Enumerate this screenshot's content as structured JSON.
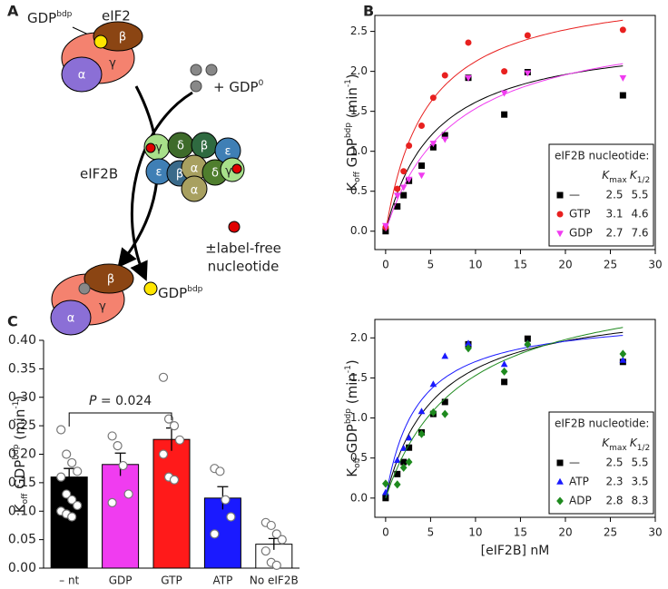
{
  "panel_labels": [
    "A",
    "B",
    "C"
  ],
  "diagram": {
    "complex_top": "eIF2",
    "ligand": "GDP",
    "ligand_sup": "bdp",
    "subunits_top": [
      "β",
      "γ",
      "α"
    ],
    "free_ligand": "+ GDP",
    "free_ligand_sup": "0",
    "gef": "eIF2B",
    "gef_subunits": [
      "γ",
      "δ",
      "β",
      "ε",
      "ε",
      "β",
      "α",
      "δ",
      "γ",
      "α"
    ],
    "label_free": [
      "±label-free",
      "nucleotide"
    ],
    "subunits_bottom": [
      "β",
      "γ",
      "α"
    ],
    "released": "GDP",
    "released_sup": "bdp"
  },
  "chart_data": [
    {
      "type": "scatter",
      "x": [
        0,
        1.3,
        2,
        2.6,
        4,
        5.3,
        6.6,
        9.2,
        13.2,
        15.8,
        26.4
      ],
      "xlim": [
        -1.2,
        30
      ],
      "xticks": [
        0,
        5,
        10,
        15,
        20,
        25,
        30
      ],
      "ylim": [
        -0.23,
        2.7
      ],
      "yticks": [
        {
          "value": 0,
          "label": "0.0"
        },
        0.5,
        {
          "value": 1,
          "label": "1.0"
        },
        1.5,
        {
          "value": 2,
          "label": "2.0"
        },
        2.5
      ],
      "ylabel": [
        {
          "text": "K"
        },
        {
          "text": "off",
          "script": "sub"
        },
        {
          "text": " GDP"
        },
        {
          "text": "bdp",
          "script": "super"
        },
        {
          "text": " (min"
        },
        {
          "text": "-1",
          "script": "super"
        },
        {
          "text": ")"
        }
      ],
      "legend": {
        "title": "eIF2B nucleotide:",
        "columns": [
          {
            "text": "K",
            "sub": "max"
          },
          {
            "text": "K",
            "sub": "1/2"
          }
        ],
        "position": "lower right"
      },
      "series": [
        {
          "name": "—",
          "color": "#000000",
          "marker": "square",
          "values": [
            0,
            0.31,
            0.45,
            0.63,
            0.82,
            1.05,
            1.2,
            1.92,
            1.46,
            1.99,
            1.7
          ],
          "fit": {
            "kmax": 2.5,
            "k_half": 5.5
          }
        },
        {
          "name": "GTP",
          "color": "#e8201f",
          "marker": "circle",
          "values": [
            0.05,
            0.53,
            0.75,
            1.07,
            1.32,
            1.67,
            1.95,
            2.36,
            2.0,
            2.45,
            2.52
          ],
          "fit": {
            "kmax": 3.1,
            "k_half": 4.6
          }
        },
        {
          "name": "GDP",
          "color": "#f03cf0",
          "marker": "triangle-down",
          "values": [
            0.07,
            0.45,
            0.55,
            0.65,
            0.7,
            1.1,
            1.15,
            1.92,
            1.73,
            1.98,
            1.92
          ],
          "fit": {
            "kmax": 2.7,
            "k_half": 7.6
          }
        }
      ]
    },
    {
      "type": "scatter",
      "x": [
        0,
        1.3,
        2,
        2.6,
        4,
        5.3,
        6.6,
        9.2,
        13.2,
        15.8,
        26.4
      ],
      "xlim": [
        -1.2,
        30
      ],
      "xticks": [
        0,
        5,
        10,
        15,
        20,
        25,
        30
      ],
      "xlabel": "[eIF2B] nM",
      "ylim": [
        -0.24,
        2.23
      ],
      "yticks": [
        {
          "value": 0,
          "label": "0.0"
        },
        0.5,
        {
          "value": 1,
          "label": "1.0"
        },
        1.5,
        {
          "value": 2,
          "label": "2.0"
        }
      ],
      "ylabel": [
        {
          "text": "K"
        },
        {
          "text": "off",
          "script": "sub"
        },
        {
          "text": " GDP"
        },
        {
          "text": "bdp",
          "script": "super"
        },
        {
          "text": " (min"
        },
        {
          "text": "-1",
          "script": "super"
        },
        {
          "text": ")"
        }
      ],
      "legend": {
        "title": "eIF2B nucleotide:",
        "columns": [
          {
            "text": "K",
            "sub": "max"
          },
          {
            "text": "K",
            "sub": "1/2"
          }
        ],
        "position": "lower right"
      },
      "series": [
        {
          "name": "—",
          "color": "#000000",
          "marker": "square",
          "values": [
            0,
            0.3,
            0.45,
            0.63,
            0.82,
            1.05,
            1.2,
            1.92,
            1.45,
            1.99,
            1.7
          ],
          "fit": {
            "kmax": 2.5,
            "k_half": 5.5
          }
        },
        {
          "name": "ATP",
          "color": "#1a1aff",
          "marker": "triangle",
          "values": [
            0.07,
            0.47,
            0.62,
            0.75,
            1.08,
            1.42,
            1.77,
            1.93,
            1.67,
            1.93,
            1.72
          ],
          "fit": {
            "kmax": 2.3,
            "k_half": 3.5
          }
        },
        {
          "name": "ADP",
          "color": "#1e8a1e",
          "marker": "diamond",
          "values": [
            0.18,
            0.17,
            0.38,
            0.45,
            0.8,
            1.07,
            1.05,
            1.87,
            1.58,
            1.92,
            1.8
          ],
          "fit": {
            "kmax": 2.8,
            "k_half": 8.3
          }
        }
      ]
    },
    {
      "type": "bar",
      "categories": [
        "– nt",
        "GDP",
        "GTP",
        "ATP",
        "No eIF2B"
      ],
      "values": [
        0.16,
        0.182,
        0.226,
        0.123,
        0.042
      ],
      "errors": [
        0.015,
        0.02,
        0.02,
        0.02,
        0.01
      ],
      "colors": [
        "#000000",
        "#f03cf0",
        "#ff1a1a",
        "#1a1aff",
        "#ffffff"
      ],
      "points": [
        [
          0.243,
          0.2,
          0.185,
          0.17,
          0.16,
          0.13,
          0.12,
          0.11,
          0.1,
          0.095,
          0.09
        ],
        [
          0.232,
          0.215,
          0.18,
          0.13,
          0.115
        ],
        [
          0.335,
          0.262,
          0.25,
          0.225,
          0.2,
          0.16,
          0.155
        ],
        [
          0.175,
          0.17,
          0.12,
          0.09,
          0.06
        ],
        [
          0.08,
          0.075,
          0.06,
          0.05,
          0.03,
          0.01,
          0.005
        ]
      ],
      "ylim": [
        0,
        0.4
      ],
      "yticks": [
        {
          "value": 0,
          "label": "0.00"
        },
        0.05,
        {
          "value": 0.1,
          "label": "0.10"
        },
        0.15,
        {
          "value": 0.2,
          "label": "0.20"
        },
        0.25,
        {
          "value": 0.3,
          "label": "0.30"
        },
        0.35,
        {
          "value": 0.4,
          "label": "0.40"
        }
      ],
      "ylabel": [
        {
          "text": "K"
        },
        {
          "text": "off",
          "script": "sub"
        },
        {
          "text": " GDP"
        },
        {
          "text": "bdp",
          "script": "super"
        },
        {
          "text": " (min"
        },
        {
          "text": "-1",
          "script": "super"
        },
        {
          "text": ")"
        }
      ],
      "annotation": [
        "P",
        " = 0.024"
      ]
    }
  ]
}
